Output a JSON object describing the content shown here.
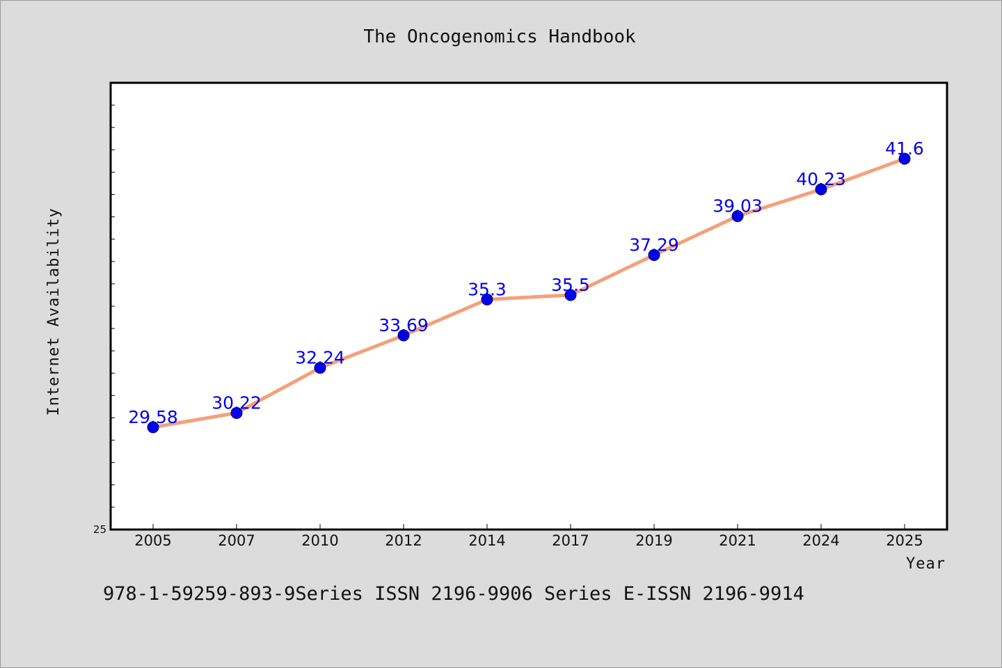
{
  "chart_data": {
    "type": "line",
    "title": "The Oncogenomics Handbook",
    "xlabel": "Year",
    "ylabel": "Internet Availability",
    "categories": [
      "2005",
      "2007",
      "2010",
      "2012",
      "2014",
      "2017",
      "2019",
      "2021",
      "2024",
      "2025"
    ],
    "series": [
      {
        "name": "",
        "values": [
          29.58,
          30.22,
          32.24,
          33.69,
          35.3,
          35.5,
          37.29,
          39.03,
          40.23,
          41.6
        ]
      }
    ],
    "data_labels": [
      "29.58",
      "30.22",
      "32.24",
      "33.69",
      "35.3",
      "35.5",
      "37.29",
      "39.03",
      "40.23",
      "41.6"
    ],
    "ylim": [
      25,
      45
    ],
    "yticks_labeled": [
      "25"
    ],
    "y_minor_tick_step": 1,
    "grid": false,
    "line_color": "#f4a07a",
    "marker_color": "#0000ee",
    "label_color": "#0000ee"
  },
  "footer": {
    "text": "978-1-59259-893-9Series ISSN 2196-9906 Series E-ISSN 2196-9914"
  }
}
